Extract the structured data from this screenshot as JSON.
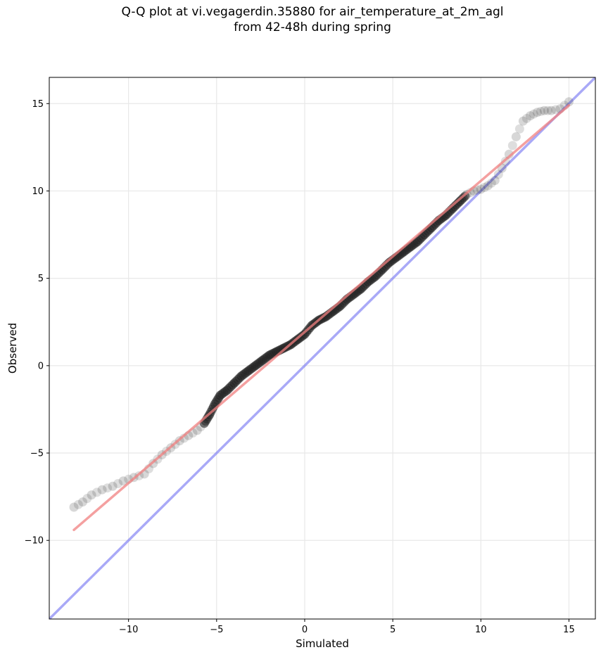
{
  "chart_data": {
    "type": "scatter",
    "title": "Q-Q plot at vi.vegagerdin.35880 for air_temperature_at_2m_agl",
    "subtitle": "from 42-48h during spring",
    "xlabel": "Simulated",
    "ylabel": "Observed",
    "xlim": [
      -14.5,
      16.5
    ],
    "ylim": [
      -14.5,
      16.5
    ],
    "xticks": [
      -10,
      -5,
      0,
      5,
      10,
      15
    ],
    "yticks": [
      -10,
      -5,
      0,
      5,
      10,
      15
    ],
    "tick_labels": [
      "−10",
      "−5",
      "0",
      "5",
      "10",
      "15"
    ],
    "grid": true,
    "colors": {
      "points": "#222222",
      "fit_line": "#f08080",
      "identity_line": "#7b7bf2",
      "axes": "#000000"
    },
    "quantile_points": {
      "x": [
        -13.1,
        -12.6,
        -12.1,
        -11.5,
        -10.9,
        -10.3,
        -9.7,
        -9.1,
        -8.6,
        -8.1,
        -7.6,
        -7.1,
        -6.6,
        -6.1,
        -5.7,
        -5.4,
        -5.1,
        -4.8,
        -4.4,
        -4.0,
        -3.6,
        -3.2,
        -2.8,
        -2.4,
        -2.0,
        -1.6,
        -1.2,
        -0.8,
        -0.4,
        0.0,
        0.4,
        0.8,
        1.2,
        1.6,
        2.0,
        2.4,
        2.8,
        3.2,
        3.6,
        4.0,
        4.4,
        4.8,
        5.2,
        5.6,
        6.0,
        6.4,
        6.8,
        7.2,
        7.6,
        8.0,
        8.4,
        8.8,
        9.2,
        9.6,
        10.0,
        10.4,
        10.8,
        11.2,
        11.6,
        12.0,
        12.4,
        12.8,
        13.2,
        13.6,
        14.0,
        14.5,
        15.0
      ],
      "y": [
        -8.1,
        -7.8,
        -7.4,
        -7.1,
        -6.9,
        -6.6,
        -6.4,
        -6.2,
        -5.6,
        -5.1,
        -4.7,
        -4.3,
        -4.0,
        -3.7,
        -3.3,
        -2.8,
        -2.2,
        -1.7,
        -1.4,
        -1.0,
        -0.6,
        -0.3,
        0.0,
        0.3,
        0.6,
        0.8,
        1.0,
        1.2,
        1.5,
        1.8,
        2.3,
        2.6,
        2.8,
        3.1,
        3.4,
        3.8,
        4.1,
        4.4,
        4.8,
        5.1,
        5.5,
        5.9,
        6.2,
        6.5,
        6.8,
        7.1,
        7.5,
        7.9,
        8.3,
        8.6,
        9.0,
        9.4,
        9.8,
        10.0,
        10.1,
        10.3,
        10.6,
        11.3,
        12.1,
        13.1,
        14.0,
        14.3,
        14.5,
        14.6,
        14.6,
        14.7,
        15.1
      ]
    },
    "fit_line": {
      "x": [
        -13.1,
        15.0
      ],
      "y": [
        -9.4,
        14.9
      ]
    },
    "identity_line": {
      "x": [
        -14.5,
        16.5
      ],
      "y": [
        -14.5,
        16.5
      ]
    }
  }
}
